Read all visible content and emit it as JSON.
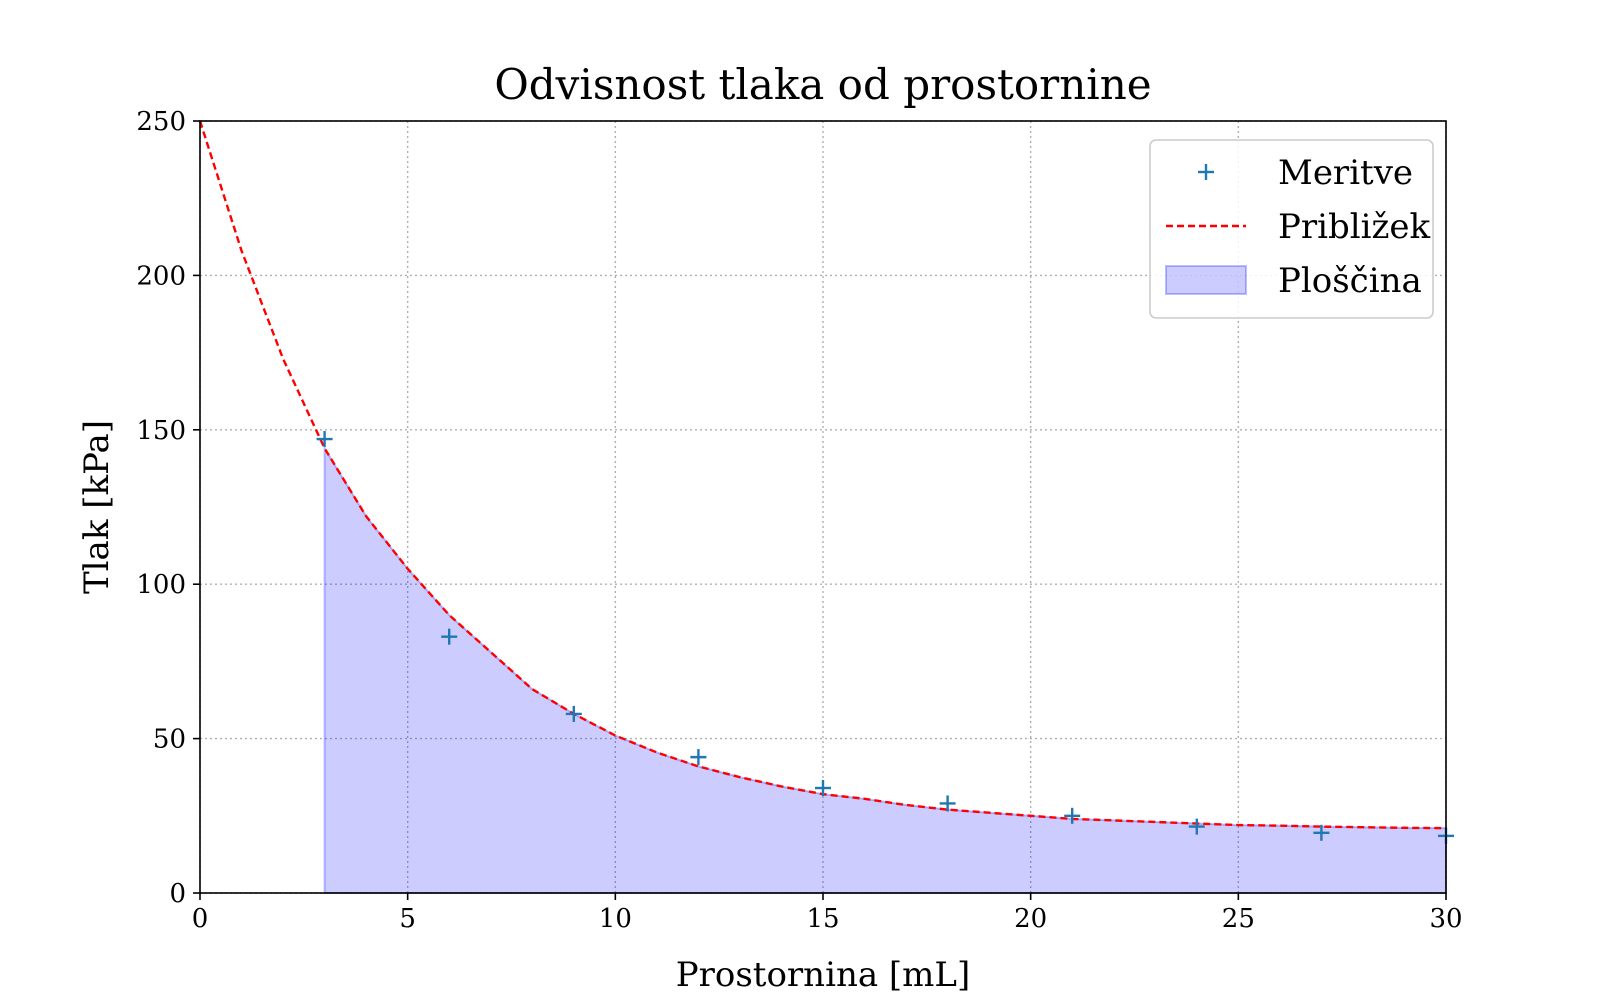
{
  "chart_data": {
    "type": "scatter",
    "title": "Odvisnost tlaka od prostornine",
    "xlabel": "Prostornina [mL]",
    "ylabel": "Tlak [kPa]",
    "xlim": [
      0,
      30
    ],
    "ylim": [
      0,
      250
    ],
    "xticks": [
      0,
      5,
      10,
      15,
      20,
      25,
      30
    ],
    "yticks": [
      0,
      50,
      100,
      150,
      200,
      250
    ],
    "xtick_labels": [
      "0",
      "5",
      "10",
      "15",
      "20",
      "25",
      "30"
    ],
    "ytick_labels": [
      "0",
      "50",
      "100",
      "150",
      "200",
      "250"
    ],
    "grid": true,
    "legend_position": "top-right",
    "series": [
      {
        "name": "Meritve",
        "kind": "scatter",
        "marker": "plus",
        "color": "#1f77b4",
        "x": [
          3,
          6,
          9,
          12,
          15,
          18,
          21,
          24,
          27,
          30
        ],
        "y": [
          147,
          83,
          58,
          44,
          34,
          29,
          25,
          21.5,
          19.5,
          18.5
        ]
      },
      {
        "name": "Približek",
        "kind": "line",
        "style": "dashed",
        "color": "#ff0000",
        "x": [
          0,
          1,
          2,
          3,
          4,
          5,
          6,
          7,
          8,
          9,
          10,
          11,
          12,
          13,
          14,
          15,
          16,
          17,
          18,
          19,
          20,
          21,
          22,
          23,
          24,
          25,
          26,
          27,
          28,
          29,
          30
        ],
        "y": [
          250,
          208,
          173,
          144,
          122,
          105,
          90,
          78,
          66,
          58,
          51,
          45.5,
          41,
          37.5,
          34.5,
          32,
          30.5,
          28.5,
          27,
          26,
          25,
          24,
          23.5,
          23,
          22.5,
          22,
          21.8,
          21.5,
          21.3,
          21.1,
          21
        ]
      },
      {
        "name": "Ploščina",
        "kind": "area",
        "color": "#0000ff",
        "fill_alpha": 0.2,
        "x_from": 3,
        "x_to": 30
      }
    ]
  }
}
